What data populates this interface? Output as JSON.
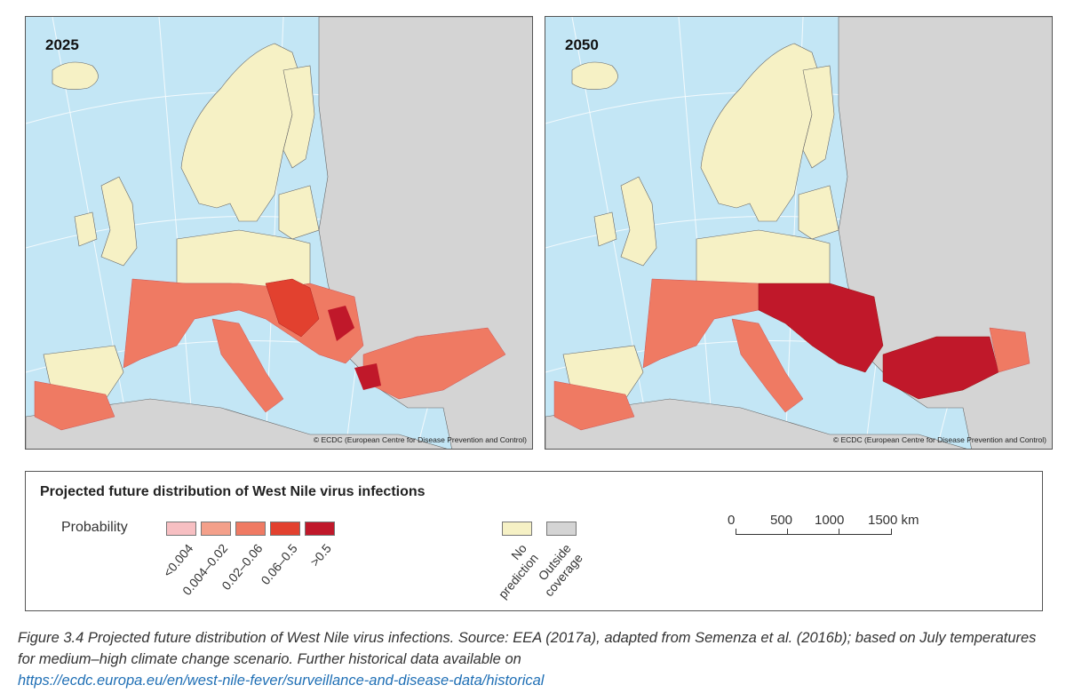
{
  "maps": [
    {
      "year": "2025",
      "credit": "© ECDC (European Centre for Disease Prevention and Control)"
    },
    {
      "year": "2050",
      "credit": "© ECDC (European Centre for Disease Prevention and Control)"
    }
  ],
  "legend": {
    "title": "Projected future distribution of West Nile virus infections",
    "probability_label": "Probability",
    "classes": [
      {
        "label": "<0.004",
        "color": "#f7bfc2"
      },
      {
        "label": "0.004–0.02",
        "color": "#f4a08a"
      },
      {
        "label": "0.02–0.06",
        "color": "#ef7a63"
      },
      {
        "label": "0.06–0.5",
        "color": "#e2412f"
      },
      {
        "label": ">0.5",
        "color": "#c0182a"
      }
    ],
    "other": [
      {
        "label": "No prediction",
        "line1": "No",
        "line2": "prediction",
        "color": "#f6f1c5"
      },
      {
        "label": "Outside coverage",
        "line1": "Outside",
        "line2": "coverage",
        "color": "#d4d4d4"
      }
    ],
    "scale": {
      "ticks": [
        "0",
        "500",
        "1000",
        "1500 km"
      ]
    }
  },
  "caption": {
    "text": "Figure 3.4  Projected future distribution of West Nile virus infections. Source: EEA (2017a), adapted from Semenza et al. (2016b); based on July temperatures for medium–high climate change scenario. Further historical data available on",
    "link": "https://ecdc.europa.eu/en/west-nile-fever/surveillance-and-disease-data/historical"
  },
  "colors": {
    "sea": "#c3e6f5",
    "land": "#d4d4d4",
    "no_prediction": "#f6f1c5"
  }
}
